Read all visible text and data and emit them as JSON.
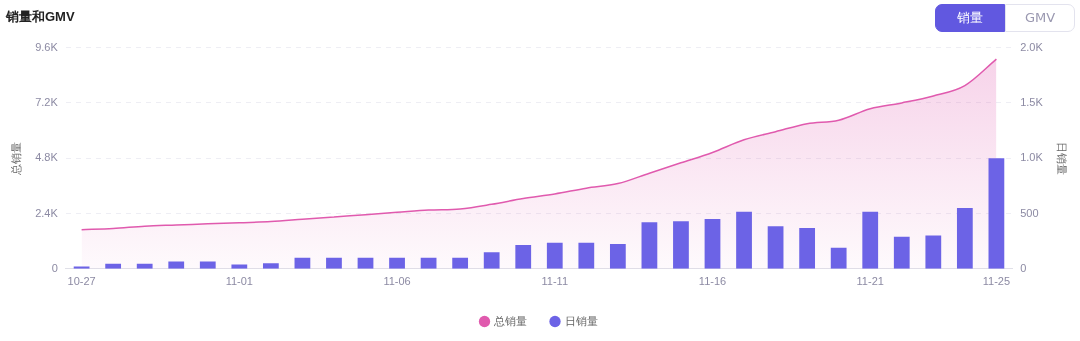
{
  "chart_data": {
    "type": "bar",
    "title": "销量和GMV",
    "ylabel": "总销量",
    "y2label": "日销量",
    "annotations": [
      "销量",
      "GMV"
    ],
    "categories": [
      "10-27",
      null,
      null,
      null,
      null,
      "11-01",
      null,
      null,
      null,
      null,
      "11-06",
      null,
      null,
      null,
      null,
      "11-11",
      null,
      null,
      null,
      null,
      "11-16",
      null,
      null,
      null,
      null,
      "11-21",
      null,
      null,
      null,
      "11-25"
    ],
    "series": [
      {
        "name": "总销量",
        "type": "area",
        "color": "#e05aae",
        "values": [
          1700,
          1750,
          1850,
          1900,
          1950,
          2000,
          2050,
          2150,
          2250,
          2350,
          2450,
          2550,
          2600,
          2800,
          3050,
          3250,
          3500,
          3700,
          4150,
          4600,
          5050,
          5600,
          5950,
          6300,
          6450,
          6950,
          7200,
          7500,
          7950,
          9100
        ]
      },
      {
        "name": "日销量",
        "axis": "y2",
        "color": "#6c63e6",
        "values": [
          20,
          45,
          45,
          65,
          65,
          40,
          50,
          100,
          100,
          100,
          100,
          100,
          100,
          150,
          215,
          235,
          235,
          225,
          420,
          430,
          450,
          515,
          385,
          370,
          190,
          515,
          290,
          300,
          550,
          1000
        ]
      }
    ],
    "ylim": [
      0,
      9600
    ],
    "yticks": [
      0,
      {
        "value": 2400,
        "label": "2.4K"
      },
      {
        "value": 4800,
        "label": "4.8K"
      },
      {
        "value": 7200,
        "label": "7.2K"
      },
      {
        "value": 9600,
        "label": "9.6K"
      }
    ],
    "y2lim": [
      0,
      2000
    ],
    "y2ticks": [
      0,
      500,
      {
        "value": 1000,
        "label": "1.0K"
      },
      {
        "value": 1500,
        "label": "1.5K"
      },
      {
        "value": 2000,
        "label": "2.0K"
      }
    ],
    "grid": "y",
    "legend": "bottom"
  }
}
